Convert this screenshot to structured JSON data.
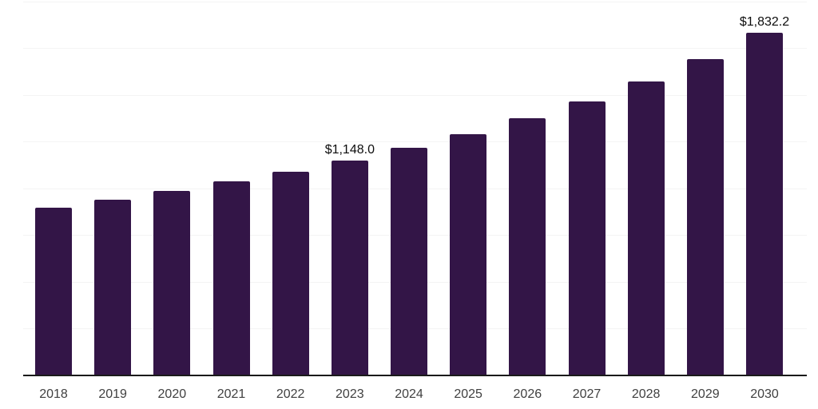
{
  "chart_data": {
    "type": "bar",
    "title": "",
    "xlabel": "",
    "ylabel": "",
    "categories": [
      "2018",
      "2019",
      "2020",
      "2021",
      "2022",
      "2023",
      "2024",
      "2025",
      "2026",
      "2027",
      "2028",
      "2029",
      "2030"
    ],
    "values": [
      897,
      942,
      987,
      1038,
      1089,
      1148.0,
      1217,
      1291,
      1374,
      1466,
      1573,
      1691,
      1832.2
    ],
    "data_labels": [
      "",
      "",
      "",
      "",
      "",
      "$1,148.0",
      "",
      "",
      "",
      "",
      "",
      "",
      "$1,832.2"
    ],
    "ylim": [
      0,
      2000
    ],
    "gridline_interval": 250,
    "grid": "horizontal-only",
    "y_axis_tick_labels": "none",
    "legend": "none",
    "colors": {
      "bar": "#331547",
      "gridline": "#f4f4f4",
      "axis_line": "#1a1a1a",
      "tick_label": "#404040",
      "data_label": "#0d0d0d",
      "background": "#ffffff"
    }
  }
}
